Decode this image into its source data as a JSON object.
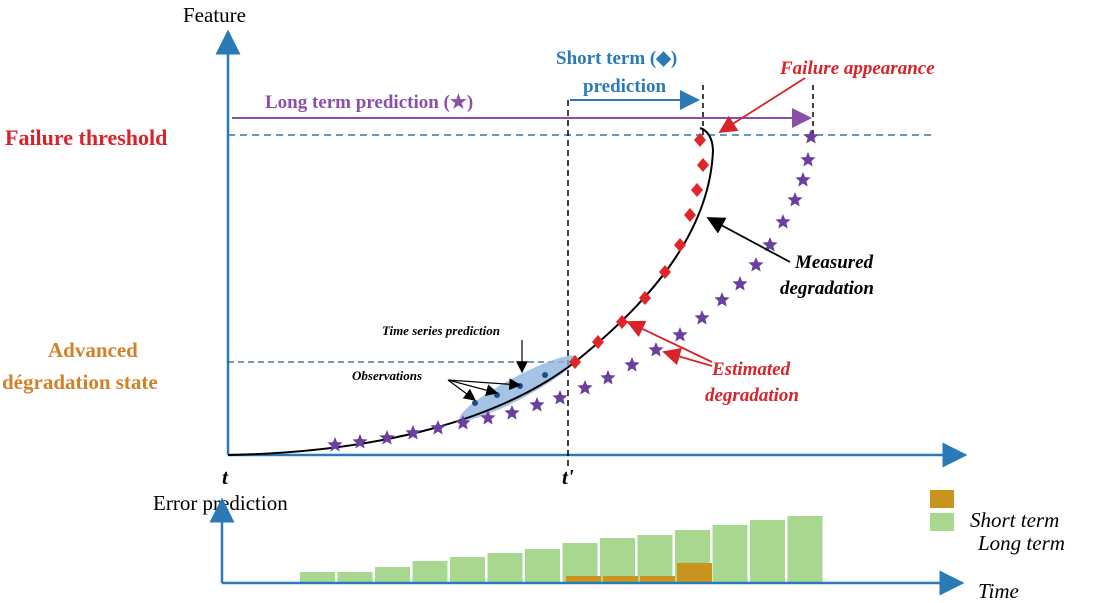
{
  "labels": {
    "feature": "Feature",
    "short_term_prediction": [
      "Short term (◆)",
      "prediction"
    ],
    "failure_appearance": "Failure appearance",
    "long_term_prediction": "Long term prediction (★)",
    "failure_threshold": "Failure threshold",
    "measured_degradation": [
      "Measured",
      "degradation"
    ],
    "advanced_state": [
      "Advanced",
      "dégradation state"
    ],
    "time_series_prediction": "Time series prediction",
    "observations": "Observations",
    "estimated_degradation": [
      "Estimated",
      "degradation"
    ],
    "t": "t",
    "t_prime": "t'",
    "error_prediction": "Error prediction",
    "legend_short": "Short term",
    "legend_long": "Long term",
    "time": "Time"
  }
}
